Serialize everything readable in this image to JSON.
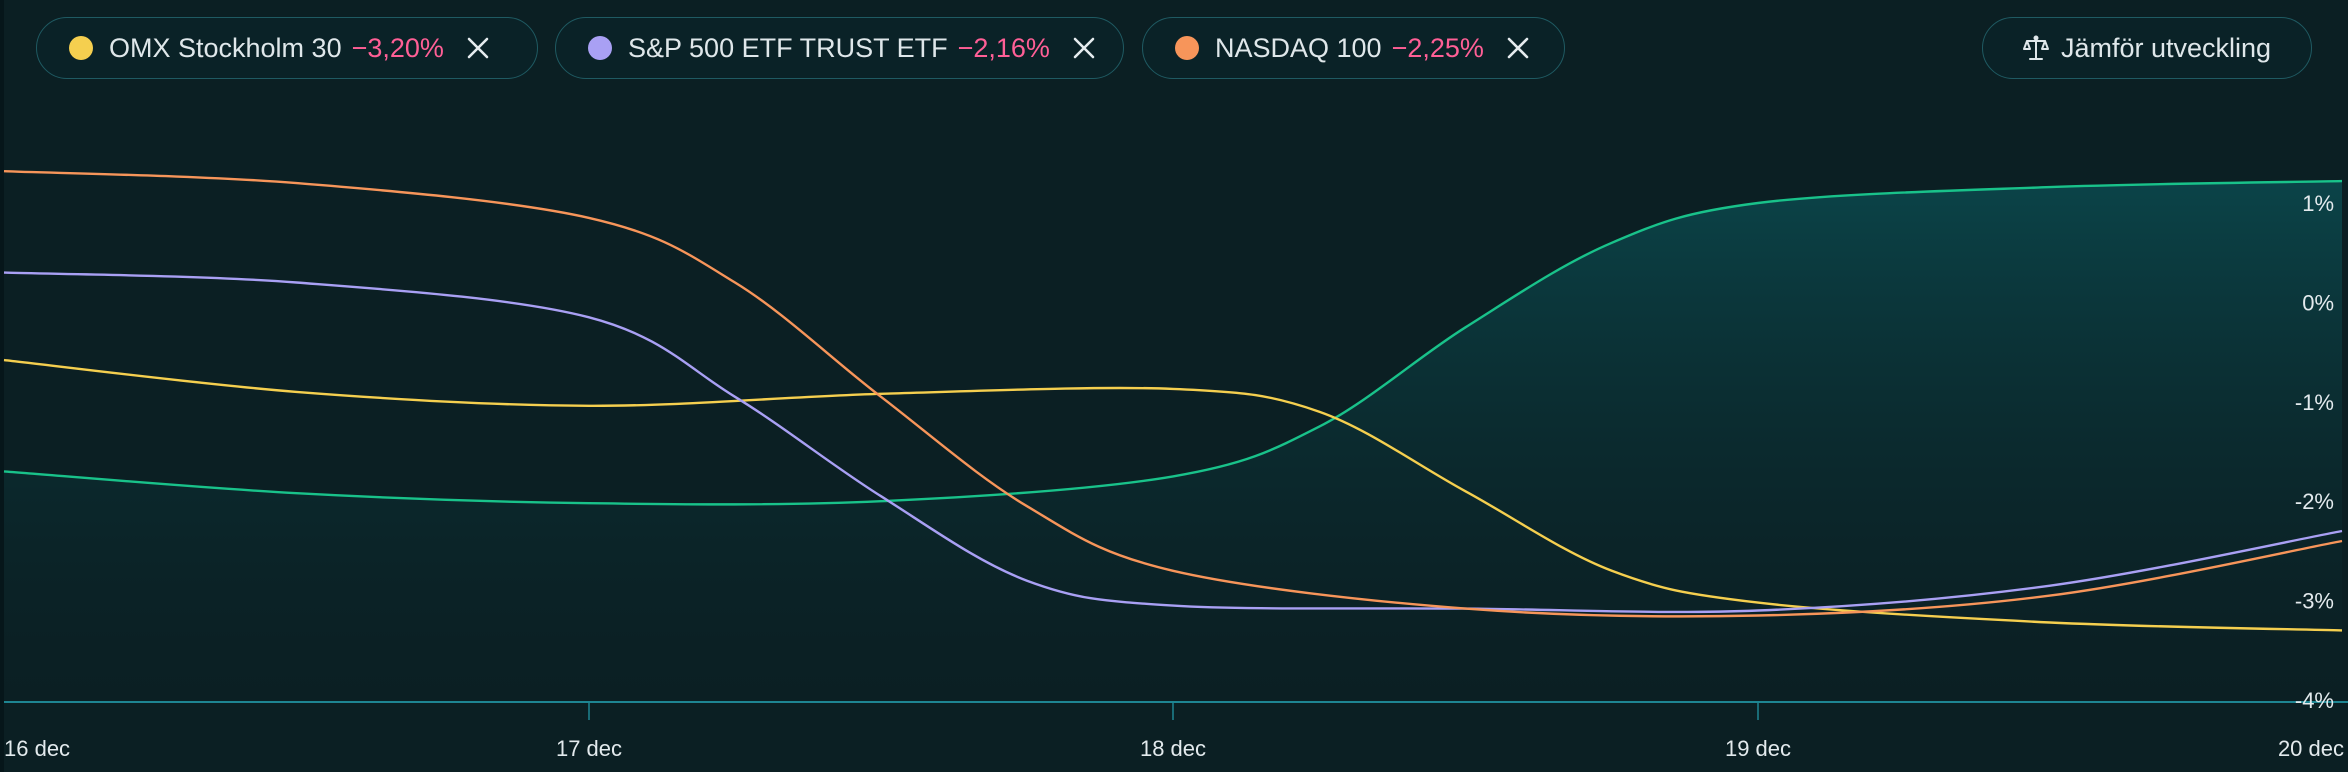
{
  "chips": [
    {
      "name": "OMX Stockholm 30",
      "change": "−3,20%",
      "color": "#f5cf4f"
    },
    {
      "name": "S&P 500 ETF TRUST ETF",
      "change": "−2,16%",
      "color": "#a9a0f4"
    },
    {
      "name": "NASDAQ 100",
      "change": "−2,25%",
      "color": "#f7955a"
    }
  ],
  "compare_button": {
    "label": "Jämför utveckling",
    "icon": "scale-icon"
  },
  "colors": {
    "background": "#0b1f23",
    "chip_border": "#1f5a62",
    "negative": "#ff5f96",
    "main_series": "#19c28a",
    "axis": "#1e8592"
  },
  "chart_data": {
    "type": "line",
    "x_categories": [
      "16 dec",
      "17 dec",
      "18 dec",
      "19 dec",
      "20 dec"
    ],
    "ylim": [
      -4,
      1.2
    ],
    "y_ticks": [
      1,
      0,
      -1,
      -2,
      -3,
      -4
    ],
    "y_tick_labels": [
      "1%",
      "0%",
      "-1%",
      "-2%",
      "-3%",
      "-4%"
    ],
    "grid": false,
    "series": [
      {
        "key": "main",
        "color": "#19c28a",
        "filled": true,
        "points": [
          [
            0,
            -1.7
          ],
          [
            0.5,
            -1.92
          ],
          [
            1,
            -2.02
          ],
          [
            1.5,
            -2.0
          ],
          [
            2,
            -1.75
          ],
          [
            2.25,
            -1.25
          ],
          [
            2.5,
            -0.25
          ],
          [
            2.75,
            0.6
          ],
          [
            3,
            1.0
          ],
          [
            3.5,
            1.16
          ],
          [
            4,
            1.22
          ]
        ]
      },
      {
        "key": "OMX Stockholm 30",
        "color": "#f5cf4f",
        "points": [
          [
            0,
            -0.58
          ],
          [
            0.5,
            -0.9
          ],
          [
            1,
            -1.04
          ],
          [
            1.5,
            -0.92
          ],
          [
            2,
            -0.87
          ],
          [
            2.25,
            -1.1
          ],
          [
            2.5,
            -1.9
          ],
          [
            2.75,
            -2.7
          ],
          [
            3,
            -3.02
          ],
          [
            3.5,
            -3.22
          ],
          [
            4,
            -3.3
          ]
        ]
      },
      {
        "key": "S&P 500 ETF TRUST ETF",
        "color": "#a9a0f4",
        "points": [
          [
            0,
            0.3
          ],
          [
            0.5,
            0.2
          ],
          [
            1,
            -0.15
          ],
          [
            1.25,
            -0.95
          ],
          [
            1.5,
            -1.95
          ],
          [
            1.75,
            -2.8
          ],
          [
            2,
            -3.05
          ],
          [
            2.5,
            -3.08
          ],
          [
            3,
            -3.1
          ],
          [
            3.5,
            -2.85
          ],
          [
            4,
            -2.3
          ]
        ]
      },
      {
        "key": "NASDAQ 100",
        "color": "#f7955a",
        "points": [
          [
            0,
            1.32
          ],
          [
            0.5,
            1.2
          ],
          [
            1,
            0.85
          ],
          [
            1.25,
            0.2
          ],
          [
            1.5,
            -0.95
          ],
          [
            1.75,
            -2.05
          ],
          [
            2,
            -2.7
          ],
          [
            2.5,
            -3.08
          ],
          [
            3,
            -3.15
          ],
          [
            3.5,
            -2.95
          ],
          [
            4,
            -2.4
          ]
        ]
      }
    ]
  }
}
